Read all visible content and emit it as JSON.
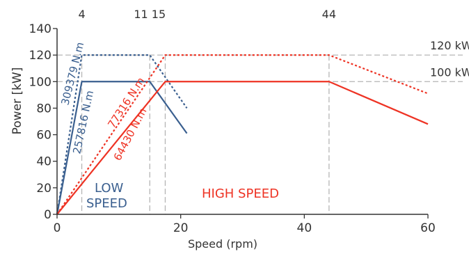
{
  "chart_data": {
    "type": "line",
    "title": "",
    "xlabel": "Speed (rpm)",
    "ylabel": "Power [kW]",
    "xlim": [
      0,
      60
    ],
    "ylim": [
      0,
      140
    ],
    "x_ticks": [
      0,
      20,
      40,
      60
    ],
    "y_ticks": [
      0,
      20,
      40,
      60,
      80,
      100,
      120,
      140
    ],
    "grid": false,
    "top_axis_labels": [
      {
        "x": 4,
        "label": "4"
      },
      {
        "x": 15,
        "label": "11 15"
      },
      {
        "x": 44,
        "label": "44"
      }
    ],
    "right_labels": [
      {
        "y": 120,
        "label": "120 kW"
      },
      {
        "y": 100,
        "label": "100 kW"
      }
    ],
    "reference_lines": {
      "horizontal": [
        120,
        100
      ],
      "vertical": [
        4,
        15,
        17.5,
        44
      ]
    },
    "colors": {
      "low": "#3a5f8f",
      "high": "#ee3324",
      "ref": "#b5b5b5",
      "axis": "#333333"
    },
    "series": [
      {
        "group": "low",
        "style": "dotted",
        "x": [
          0,
          4,
          15,
          21
        ],
        "y": [
          0,
          120,
          120,
          80
        ]
      },
      {
        "group": "low",
        "style": "solid",
        "x": [
          0,
          4,
          15,
          21
        ],
        "y": [
          0,
          100,
          100,
          61
        ]
      },
      {
        "group": "high",
        "style": "dotted",
        "x": [
          0,
          17.5,
          44,
          60
        ],
        "y": [
          0,
          120,
          120,
          91
        ]
      },
      {
        "group": "high",
        "style": "solid",
        "x": [
          0,
          17.5,
          44,
          60
        ],
        "y": [
          0,
          100,
          100,
          68
        ]
      }
    ],
    "annotations": [
      {
        "text": "309379 N.m",
        "group": "low"
      },
      {
        "text": "257816 N.m",
        "group": "low"
      },
      {
        "text": "77316 N.m",
        "group": "high"
      },
      {
        "text": "64430 N.m",
        "group": "high"
      },
      {
        "text": "LOW",
        "group": "low"
      },
      {
        "text": "SPEED",
        "group": "low"
      },
      {
        "text": "HIGH SPEED",
        "group": "high"
      }
    ]
  }
}
